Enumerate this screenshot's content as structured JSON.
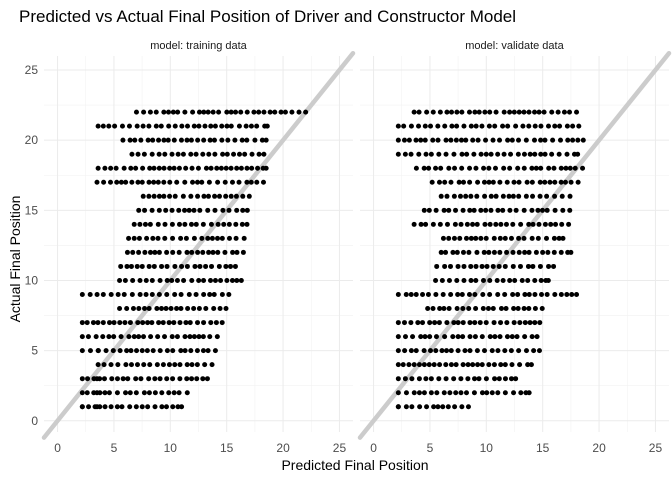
{
  "chart_data": {
    "type": "scatter",
    "title": "Predicted vs Actual Final Position of Driver and Constructor Model",
    "xlabel": "Predicted Final Position",
    "ylabel": "Actual Final Position",
    "xlim": [
      -1.2,
      26.2
    ],
    "ylim": [
      -0.8,
      26.0
    ],
    "xticks": [
      0,
      5,
      10,
      15,
      20,
      25
    ],
    "yticks": [
      0,
      5,
      10,
      15,
      20,
      25
    ],
    "grid": true,
    "reference_line": {
      "slope": 1,
      "intercept": 0,
      "color": "#cccccc"
    },
    "point_color": "#000000",
    "panels": [
      {
        "strip_label": "model: training data",
        "rows": [
          {
            "y": 1,
            "xmin": 2.2,
            "xmax": 11.0,
            "extra": [
              2.2,
              3.5
            ]
          },
          {
            "y": 2,
            "xmin": 2.2,
            "xmax": 11.5,
            "extra": [
              3.5
            ]
          },
          {
            "y": 3,
            "xmin": 2.2,
            "xmax": 13.3,
            "extra": [
              3.5
            ]
          },
          {
            "y": 4,
            "xmin": 3.6,
            "xmax": 13.7
          },
          {
            "y": 5,
            "xmin": 2.2,
            "xmax": 14.0,
            "extra": [
              3.6
            ]
          },
          {
            "y": 6,
            "xmin": 2.2,
            "xmax": 14.2
          },
          {
            "y": 7,
            "xmin": 2.2,
            "xmax": 14.6
          },
          {
            "y": 8,
            "xmin": 5.5,
            "xmax": 15.0
          },
          {
            "y": 9,
            "xmin": 2.2,
            "xmax": 15.3
          },
          {
            "y": 10,
            "xmin": 5.5,
            "xmax": 16.3
          },
          {
            "y": 11,
            "xmin": 5.6,
            "xmax": 15.8
          },
          {
            "y": 12,
            "xmin": 6.2,
            "xmax": 16.5
          },
          {
            "y": 13,
            "xmin": 6.3,
            "xmax": 16.6
          },
          {
            "y": 14,
            "xmin": 6.8,
            "xmax": 16.8
          },
          {
            "y": 15,
            "xmin": 7.2,
            "xmax": 16.9
          },
          {
            "y": 16,
            "xmin": 7.6,
            "xmax": 17.0
          },
          {
            "y": 17,
            "xmin": 3.5,
            "xmax": 18.3
          },
          {
            "y": 18,
            "xmin": 3.6,
            "xmax": 18.5
          },
          {
            "y": 19,
            "xmin": 6.6,
            "xmax": 18.3
          },
          {
            "y": 20,
            "xmin": 5.8,
            "xmax": 18.5
          },
          {
            "y": 21,
            "xmin": 3.6,
            "xmax": 18.6
          },
          {
            "y": 22,
            "xmin": 7.0,
            "xmax": 22.0
          }
        ]
      },
      {
        "strip_label": "model: validate data",
        "rows": [
          {
            "y": 1,
            "xmin": 2.2,
            "xmax": 8.5,
            "extra": [
              2.2
            ]
          },
          {
            "y": 2,
            "xmin": 2.2,
            "xmax": 13.8
          },
          {
            "y": 3,
            "xmin": 2.2,
            "xmax": 12.6
          },
          {
            "y": 4,
            "xmin": 2.2,
            "xmax": 14.0
          },
          {
            "y": 5,
            "xmin": 2.2,
            "xmax": 14.8
          },
          {
            "y": 6,
            "xmin": 2.2,
            "xmax": 14.5
          },
          {
            "y": 7,
            "xmin": 2.2,
            "xmax": 14.9
          },
          {
            "y": 8,
            "xmin": 4.8,
            "xmax": 15.0
          },
          {
            "y": 9,
            "xmin": 2.2,
            "xmax": 18.0
          },
          {
            "y": 10,
            "xmin": 5.5,
            "xmax": 15.5
          },
          {
            "y": 11,
            "xmin": 5.6,
            "xmax": 16.0
          },
          {
            "y": 12,
            "xmin": 6.0,
            "xmax": 17.5
          },
          {
            "y": 13,
            "xmin": 6.2,
            "xmax": 16.8
          },
          {
            "y": 14,
            "xmin": 3.6,
            "xmax": 17.3
          },
          {
            "y": 15,
            "xmin": 4.5,
            "xmax": 17.4
          },
          {
            "y": 16,
            "xmin": 6.0,
            "xmax": 17.6
          },
          {
            "y": 17,
            "xmin": 5.2,
            "xmax": 18.2
          },
          {
            "y": 18,
            "xmin": 3.8,
            "xmax": 18.6
          },
          {
            "y": 19,
            "xmin": 2.2,
            "xmax": 18.1
          },
          {
            "y": 20,
            "xmin": 2.2,
            "xmax": 18.6
          },
          {
            "y": 21,
            "xmin": 2.2,
            "xmax": 18.2
          },
          {
            "y": 22,
            "xmin": 3.6,
            "xmax": 18.0
          }
        ]
      }
    ]
  }
}
